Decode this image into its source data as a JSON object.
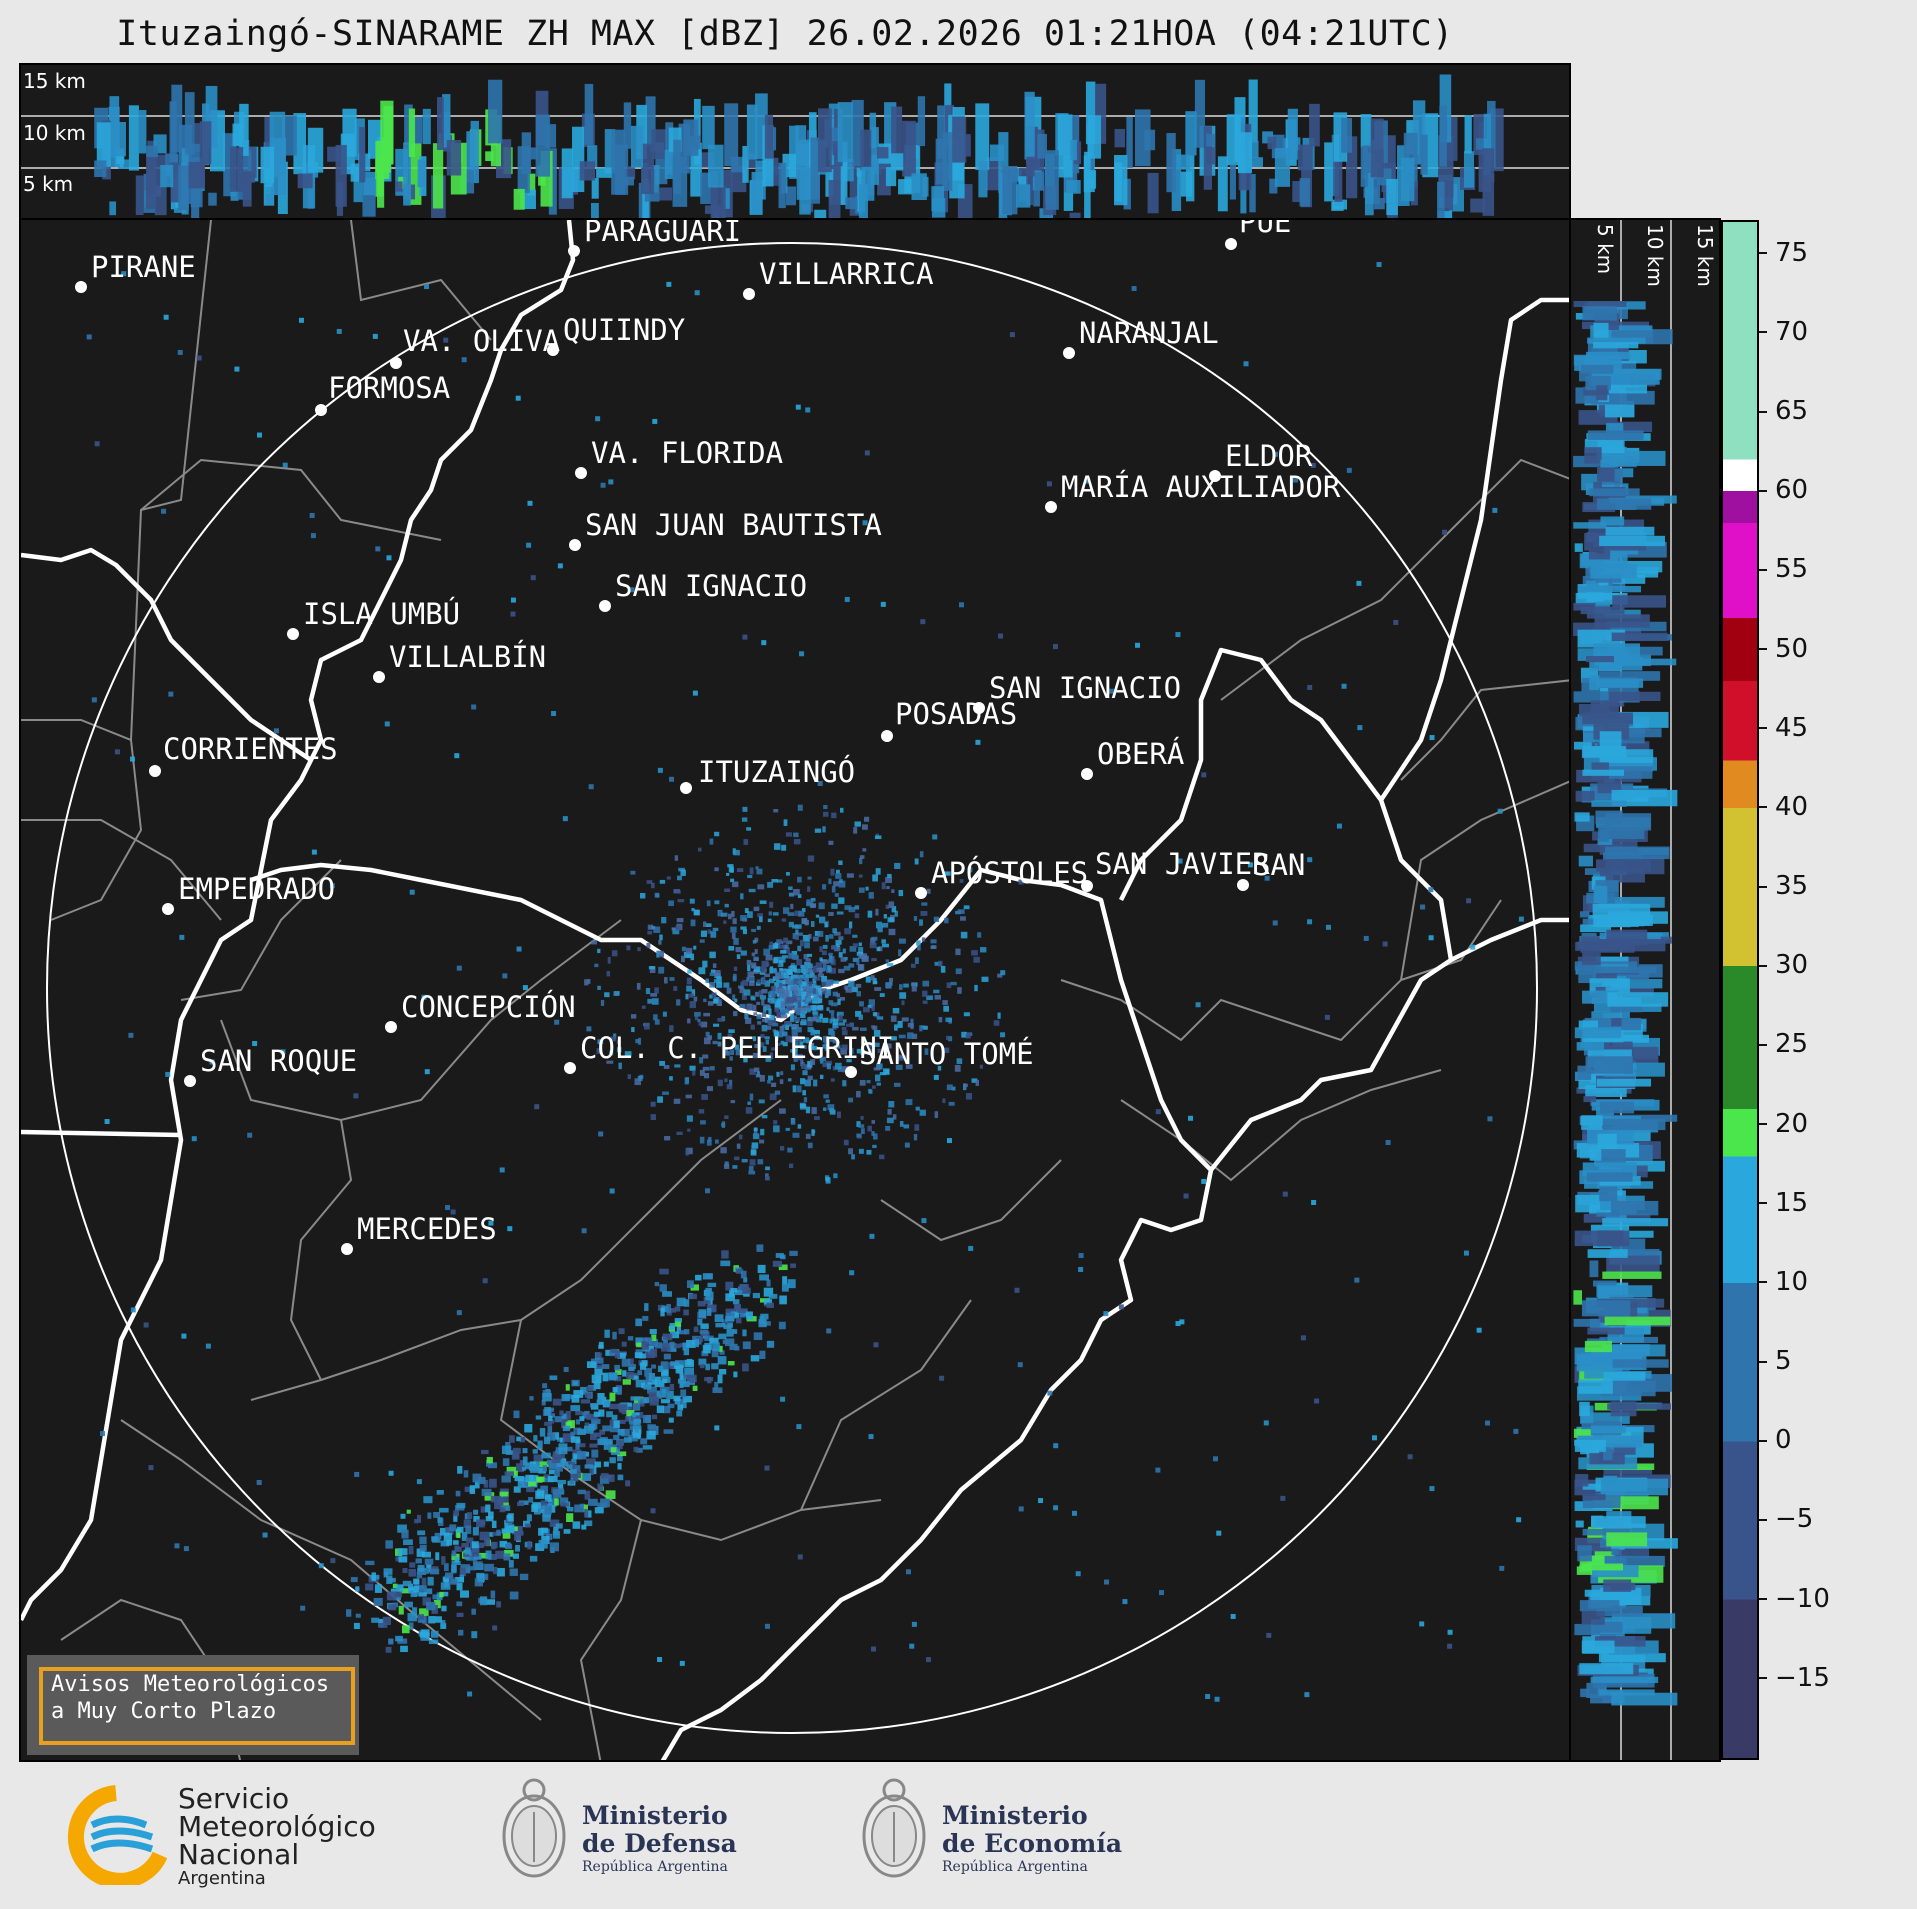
{
  "title": "Ituzaingó-SINARAME ZH MAX [dBZ] 26.02.2026 01:21HOA (04:21UTC)",
  "top_panel": {
    "height_labels": [
      "15 km",
      "10 km",
      "5 km"
    ]
  },
  "side_panel": {
    "height_labels": [
      "5 km",
      "10 km",
      "15 km"
    ]
  },
  "colorbar": {
    "unit": "dBZ",
    "ticks": [
      "75",
      "70",
      "65",
      "60",
      "55",
      "50",
      "45",
      "40",
      "35",
      "30",
      "25",
      "20",
      "15",
      "10",
      "5",
      "0",
      "−5",
      "−10",
      "−15"
    ],
    "stops": [
      {
        "from": -20,
        "to": -10,
        "color": "#3a3a66"
      },
      {
        "from": -10,
        "to": 0,
        "color": "#39548a"
      },
      {
        "from": 0,
        "to": 10,
        "color": "#2f74ad"
      },
      {
        "from": 10,
        "to": 18,
        "color": "#2aa8dd"
      },
      {
        "from": 18,
        "to": 21,
        "color": "#4be64b"
      },
      {
        "from": 21,
        "to": 30,
        "color": "#2a8a2a"
      },
      {
        "from": 30,
        "to": 40,
        "color": "#d2c232"
      },
      {
        "from": 40,
        "to": 43,
        "color": "#e08a20"
      },
      {
        "from": 43,
        "to": 48,
        "color": "#d0102a"
      },
      {
        "from": 48,
        "to": 52,
        "color": "#a00010"
      },
      {
        "from": 52,
        "to": 58,
        "color": "#e010c8"
      },
      {
        "from": 58,
        "to": 60,
        "color": "#a010a0"
      },
      {
        "from": 60,
        "to": 62,
        "color": "#ffffff"
      },
      {
        "from": 62,
        "to": 77,
        "color": "#8ee0c0"
      }
    ]
  },
  "cities": [
    {
      "name": "PIRANE",
      "id": "pirane"
    },
    {
      "name": "PARAGUARÍ",
      "id": "paraguari"
    },
    {
      "name": "VILLARRICA",
      "id": "villarrica"
    },
    {
      "name": "VA. OLIVA",
      "id": "va-oliva"
    },
    {
      "name": "QUIINDY",
      "id": "quiindy"
    },
    {
      "name": "NARANJAL",
      "id": "naranjal"
    },
    {
      "name": "FORMOSA",
      "id": "formosa"
    },
    {
      "name": "VA. FLORIDA",
      "id": "va-florida"
    },
    {
      "name": "ELDOR",
      "id": "eldorado"
    },
    {
      "name": "MARÍA AUXILIADOR",
      "id": "maria-auxiliadora"
    },
    {
      "name": "SAN JUAN BAUTISTA",
      "id": "san-juan-bautista"
    },
    {
      "name": "SAN IGNACIO",
      "id": "san-ignacio-py"
    },
    {
      "name": "ISLA UMBÚ",
      "id": "isla-umbu"
    },
    {
      "name": "VILLALBÍN",
      "id": "villalbin"
    },
    {
      "name": "SAN IGNACIO",
      "id": "san-ignacio-ar"
    },
    {
      "name": "POSADAS",
      "id": "posadas"
    },
    {
      "name": "CORRIENTES",
      "id": "corrientes"
    },
    {
      "name": "ITUZAINGÓ",
      "id": "ituzaingo"
    },
    {
      "name": "OBERÁ",
      "id": "obera"
    },
    {
      "name": "EMPEDRADO",
      "id": "empedrado"
    },
    {
      "name": "APÓSTOLES",
      "id": "apostoles"
    },
    {
      "name": "SAN JAVIER",
      "id": "san-javier"
    },
    {
      "name": "SAN",
      "id": "san-edge"
    },
    {
      "name": "CONCEPCIÓN",
      "id": "concepcion"
    },
    {
      "name": "COL. C. PELLEGRINI",
      "id": "col-pellegrini"
    },
    {
      "name": "SANTO TOMÉ",
      "id": "santo-tome"
    },
    {
      "name": "SAN ROQUE",
      "id": "san-roque"
    },
    {
      "name": "MERCEDES",
      "id": "mercedes"
    },
    {
      "name": "PUE",
      "id": "puerto"
    }
  ],
  "warning_box": {
    "line1": "Avisos Meteorológicos",
    "line2": "a Muy Corto Plazo"
  },
  "logos": {
    "smn": {
      "line1": "Servicio",
      "line2": "Meteorológico",
      "line3": "Nacional",
      "line4": "Argentina",
      "icon": "smn-logo-icon"
    },
    "defensa": {
      "line1": "Ministerio",
      "line2": "de Defensa",
      "line3": "República Argentina",
      "icon": "coat-of-arms-icon"
    },
    "economia": {
      "line1": "Ministerio",
      "line2": "de Economía",
      "line3": "República Argentina",
      "icon": "coat-of-arms-icon"
    }
  }
}
